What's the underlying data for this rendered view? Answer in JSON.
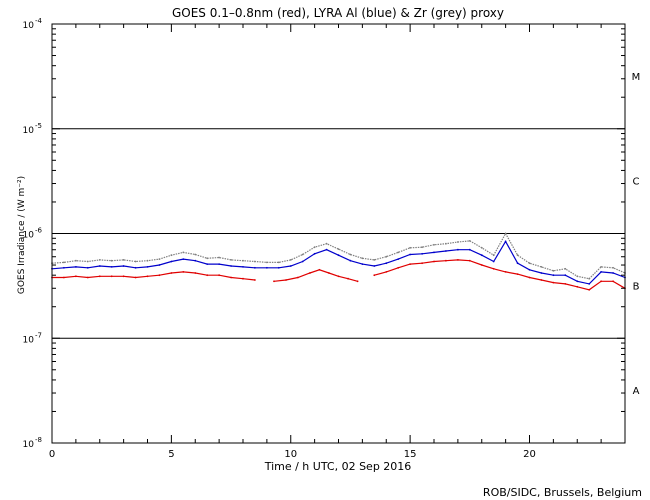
{
  "chart_data": {
    "type": "line",
    "title": "GOES 0.1–0.8nm (red), LYRA Al (blue) & Zr (grey) proxy",
    "xlabel": "Time / h UTC, 02 Sep 2016",
    "ylabel": "GOES Irradiance / (W m⁻²)",
    "xlim": [
      0,
      24
    ],
    "ylim": [
      1e-08,
      0.0001
    ],
    "yscale": "log",
    "x_ticks": [
      0,
      5,
      10,
      15,
      20
    ],
    "x_tick_labels": [
      "0",
      "5",
      "10",
      "15",
      "20"
    ],
    "y_tick_labels": [
      {
        "value": 1e-08,
        "base": "10",
        "exp": "-8"
      },
      {
        "value": 1e-07,
        "base": "10",
        "exp": "-7"
      },
      {
        "value": 1e-06,
        "base": "10",
        "exp": "-6"
      },
      {
        "value": 1e-05,
        "base": "10",
        "exp": "-5"
      },
      {
        "value": 0.0001,
        "base": "10",
        "exp": "-4"
      }
    ],
    "class_lines": [
      1e-07,
      1e-06,
      1e-05
    ],
    "class_labels": [
      {
        "label": "A",
        "value": 3.2e-08
      },
      {
        "label": "B",
        "value": 3.2e-07
      },
      {
        "label": "C",
        "value": 3.2e-06
      },
      {
        "label": "M",
        "value": 3.2e-05
      }
    ],
    "series": [
      {
        "name": "LYRA Zr proxy",
        "color": "#808080",
        "x": [
          0,
          0.5,
          1,
          1.5,
          2,
          2.5,
          3,
          3.5,
          4,
          4.5,
          5,
          5.5,
          6,
          6.5,
          7,
          7.5,
          8,
          8.5,
          9,
          9.5,
          10,
          10.5,
          11,
          11.5,
          12,
          12.5,
          13,
          13.5,
          14,
          14.5,
          15,
          15.5,
          16,
          16.5,
          17,
          17.5,
          18,
          18.5,
          19,
          19.5,
          20,
          20.5,
          21,
          21.5,
          22,
          22.5,
          23,
          23.5,
          24
        ],
        "values": [
          5.2e-07,
          5.3e-07,
          5.5e-07,
          5.4e-07,
          5.6e-07,
          5.5e-07,
          5.6e-07,
          5.4e-07,
          5.5e-07,
          5.7e-07,
          6.2e-07,
          6.6e-07,
          6.3e-07,
          5.8e-07,
          5.9e-07,
          5.6e-07,
          5.5e-07,
          5.4e-07,
          5.3e-07,
          5.3e-07,
          5.6e-07,
          6.3e-07,
          7.4e-07,
          8e-07,
          7.1e-07,
          6.3e-07,
          5.8e-07,
          5.6e-07,
          6e-07,
          6.6e-07,
          7.3e-07,
          7.4e-07,
          7.8e-07,
          8e-07,
          8.3e-07,
          8.5e-07,
          7.3e-07,
          6.2e-07,
          1e-06,
          6.2e-07,
          5.2e-07,
          4.8e-07,
          4.4e-07,
          4.6e-07,
          3.9e-07,
          3.7e-07,
          4.8e-07,
          4.7e-07,
          4.2e-07
        ]
      },
      {
        "name": "LYRA Al proxy",
        "color": "#0000cc",
        "x": [
          0,
          0.5,
          1,
          1.5,
          2,
          2.5,
          3,
          3.5,
          4,
          4.5,
          5,
          5.5,
          6,
          6.5,
          7,
          7.5,
          8,
          8.5,
          9,
          9.5,
          10,
          10.5,
          11,
          11.5,
          12,
          12.5,
          13,
          13.5,
          14,
          14.5,
          15,
          15.5,
          16,
          16.5,
          17,
          17.5,
          18,
          18.5,
          19,
          19.5,
          20,
          20.5,
          21,
          21.5,
          22,
          22.5,
          23,
          23.5,
          24
        ],
        "values": [
          4.6e-07,
          4.7e-07,
          4.8e-07,
          4.7e-07,
          4.9e-07,
          4.8e-07,
          4.9e-07,
          4.7e-07,
          4.8e-07,
          5e-07,
          5.4e-07,
          5.7e-07,
          5.5e-07,
          5.1e-07,
          5.1e-07,
          4.9e-07,
          4.8e-07,
          4.7e-07,
          4.7e-07,
          4.7e-07,
          4.9e-07,
          5.4e-07,
          6.4e-07,
          7e-07,
          6.2e-07,
          5.5e-07,
          5.1e-07,
          4.9e-07,
          5.2e-07,
          5.7e-07,
          6.3e-07,
          6.4e-07,
          6.6e-07,
          6.8e-07,
          7e-07,
          7e-07,
          6.2e-07,
          5.4e-07,
          8.4e-07,
          5.2e-07,
          4.5e-07,
          4.2e-07,
          4e-07,
          4e-07,
          3.5e-07,
          3.3e-07,
          4.3e-07,
          4.2e-07,
          3.8e-07
        ]
      },
      {
        "name": "GOES 0.1–0.8nm",
        "color": "#e00000",
        "x": [
          0,
          0.5,
          1,
          1.5,
          2,
          2.5,
          3,
          3.5,
          4,
          4.5,
          5,
          5.5,
          6,
          6.5,
          7,
          7.5,
          8,
          8.5,
          null,
          9.3,
          9.8,
          10.3,
          10.8,
          11.2,
          11.6,
          12,
          12.4,
          12.8,
          null,
          13.5,
          14,
          14.5,
          15,
          15.5,
          16,
          16.5,
          17,
          17.5,
          18,
          18.5,
          19,
          19.5,
          20,
          20.5,
          21,
          21.5,
          22,
          22.5,
          23,
          23.5,
          24
        ],
        "values": [
          3.8e-07,
          3.8e-07,
          3.9e-07,
          3.8e-07,
          3.9e-07,
          3.9e-07,
          3.9e-07,
          3.8e-07,
          3.9e-07,
          4e-07,
          4.2e-07,
          4.3e-07,
          4.2e-07,
          4e-07,
          4e-07,
          3.8e-07,
          3.7e-07,
          3.6e-07,
          null,
          3.5e-07,
          3.6e-07,
          3.8e-07,
          4.2e-07,
          4.5e-07,
          4.2e-07,
          3.9e-07,
          3.7e-07,
          3.5e-07,
          null,
          4e-07,
          4.3e-07,
          4.7e-07,
          5.1e-07,
          5.2e-07,
          5.4e-07,
          5.5e-07,
          5.6e-07,
          5.5e-07,
          5e-07,
          4.6e-07,
          4.3e-07,
          4.1e-07,
          3.8e-07,
          3.6e-07,
          3.4e-07,
          3.3e-07,
          3.1e-07,
          2.9e-07,
          3.5e-07,
          3.5e-07,
          3e-07
        ]
      }
    ]
  },
  "footer": {
    "credit": "ROB/SIDC, Brussels, Belgium"
  }
}
